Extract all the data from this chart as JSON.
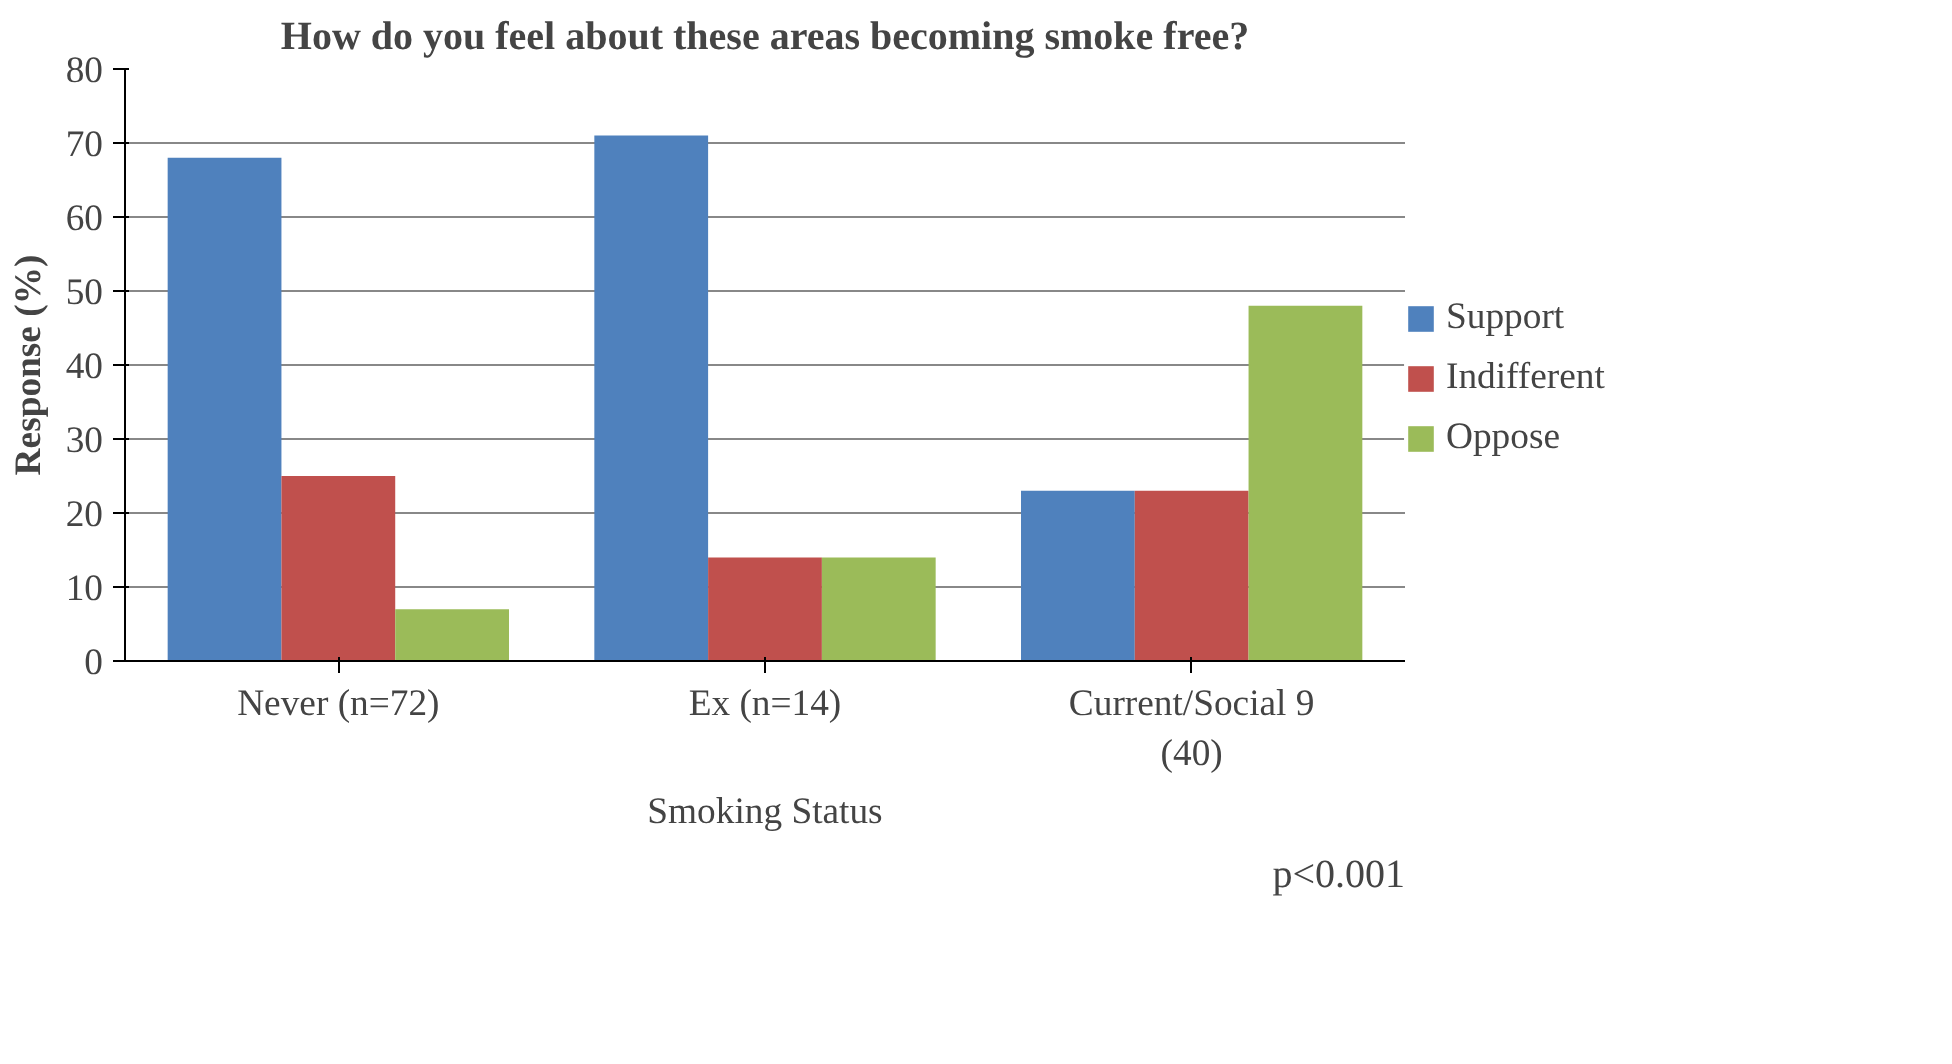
{
  "chart_data": {
    "type": "bar",
    "title": "How do you feel about these areas becoming smoke free?",
    "xlabel": "Smoking Status",
    "ylabel": "Response (%)",
    "categories": [
      "Never (n=72)",
      "Ex (n=14)",
      "Current/Social 9 (40)"
    ],
    "series": [
      {
        "name": "Support",
        "color": "#4f81bd",
        "values": [
          68,
          71,
          23
        ]
      },
      {
        "name": "Indifferent",
        "color": "#c0504d",
        "values": [
          25,
          14,
          23
        ]
      },
      {
        "name": "Oppose",
        "color": "#9bbb59",
        "values": [
          7,
          14,
          48
        ]
      }
    ],
    "ylim": [
      0,
      80
    ],
    "yticks": [
      0,
      10,
      20,
      30,
      40,
      50,
      60,
      70,
      80
    ],
    "grid": "y",
    "legend": "right",
    "annotations": [
      "p<0.001"
    ]
  }
}
